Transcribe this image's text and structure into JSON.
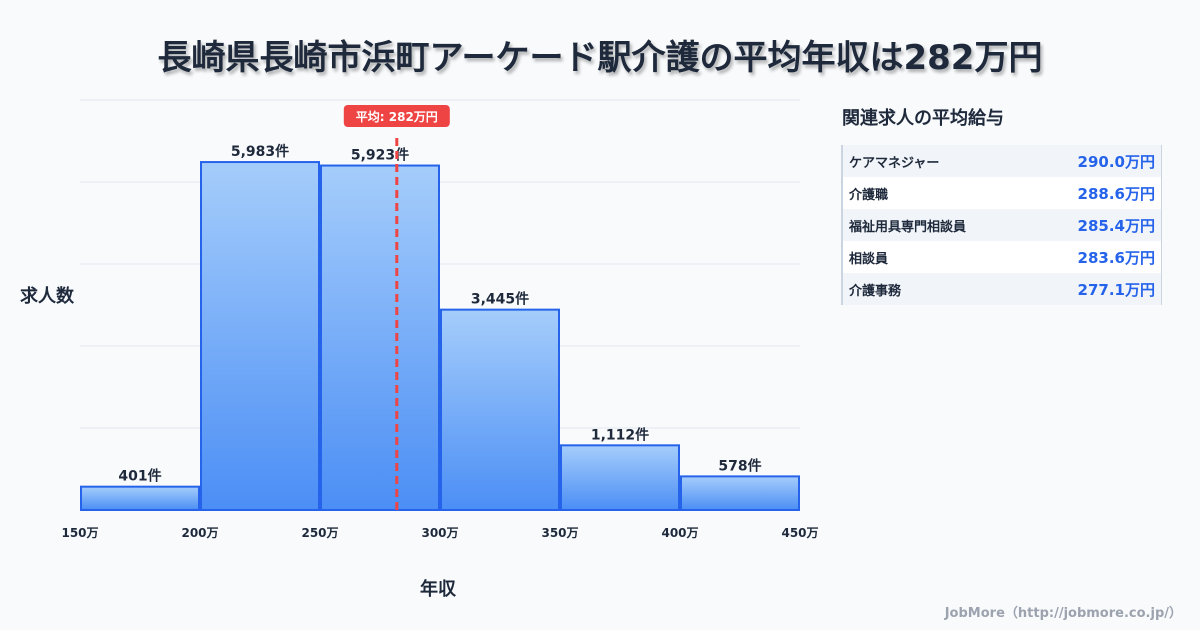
{
  "title": "長崎県長崎市浜町アーケード駅介護の平均年収は282万円",
  "chart_data": {
    "type": "bar",
    "title": "長崎県長崎市浜町アーケード駅介護の平均年収は282万円",
    "xlabel": "年収",
    "ylabel": "求人数",
    "bin_edges": [
      150,
      200,
      250,
      300,
      350,
      400,
      450
    ],
    "tick_labels": [
      "150万",
      "200万",
      "250万",
      "300万",
      "350万",
      "400万",
      "450万"
    ],
    "values": [
      401,
      5983,
      5923,
      3445,
      1112,
      578
    ],
    "data_labels": [
      "401件",
      "5,983件",
      "5,923件",
      "3,445件",
      "1,112件",
      "578件"
    ],
    "xlim": [
      150,
      450
    ],
    "ylim": [
      0,
      7050
    ],
    "grid": true,
    "mean": 282,
    "mean_label": "平均: 282万円",
    "colors": {
      "bar_top": "#a5cdfb",
      "bar_bottom": "#4b8ef5",
      "bar_edge": "#2563eb",
      "mean": "#ef4444"
    }
  },
  "side": {
    "title": "関連求人の平均給与",
    "items": [
      {
        "name": "ケアマネジャー",
        "value": "290.0万円"
      },
      {
        "name": "介護職",
        "value": "288.6万円"
      },
      {
        "name": "福祉用具専門相談員",
        "value": "285.4万円"
      },
      {
        "name": "相談員",
        "value": "283.6万円"
      },
      {
        "name": "介護事務",
        "value": "277.1万円"
      }
    ]
  },
  "footer": "JobMore（http://jobmore.co.jp/）"
}
